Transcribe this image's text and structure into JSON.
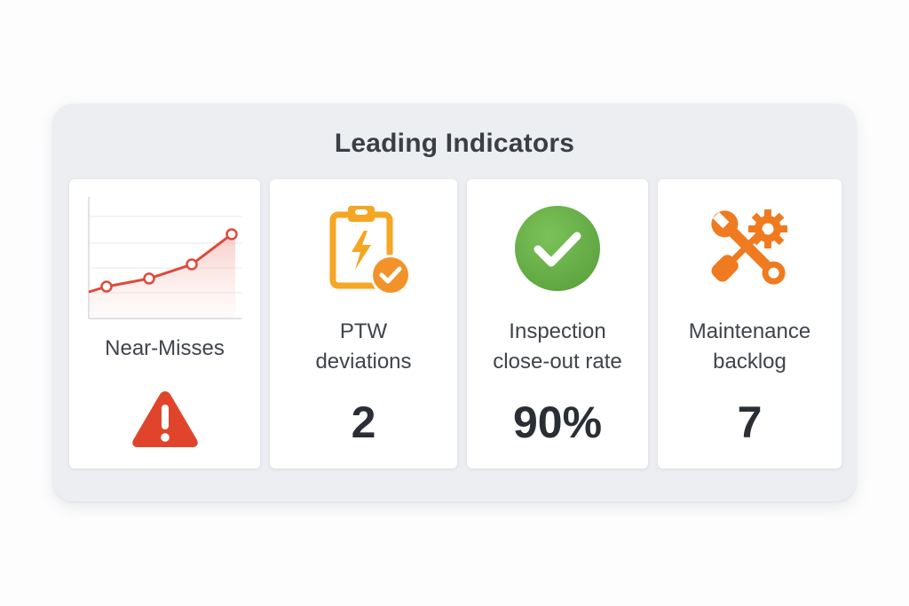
{
  "panel": {
    "title": "Leading Indicators"
  },
  "cards": [
    {
      "label": "Near-Misses",
      "icon": "trend-line-chart-icon",
      "status_icon": "warning-triangle-icon",
      "trend_values": [
        1,
        1.4,
        2.1,
        3.6
      ]
    },
    {
      "label_line1": "PTW",
      "label_line2": "deviations",
      "value": "2",
      "icon": "clipboard-check-icon"
    },
    {
      "label_line1": "Inspection",
      "label_line2": "close-out rate",
      "value": "90%",
      "icon": "check-circle-icon"
    },
    {
      "label_line1": "Maintenance",
      "label_line2": "backlog",
      "value": "7",
      "icon": "wrench-gear-icon"
    }
  ],
  "colors": {
    "trend": "#dd4a3c",
    "warning": "#e0452b",
    "clipboard": "#f5a623",
    "check_badge": "#f2932a",
    "success": "#6ab04c",
    "tools": "#f07a1f"
  }
}
